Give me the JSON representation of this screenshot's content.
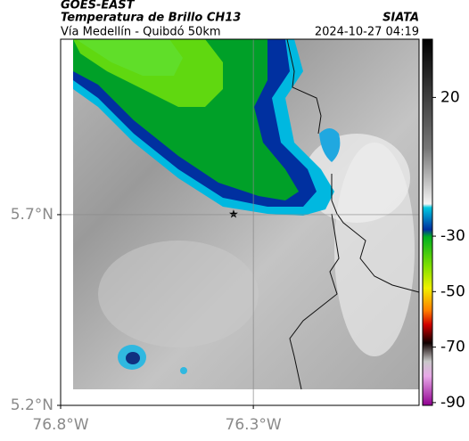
{
  "header": {
    "title": "GOES-EAST",
    "subtitle": "Temperatura de Brillo CH13",
    "route": "Vía Medellín - Quibdó 50km",
    "source": "SIATA",
    "datetime": "2024-10-27 04:19"
  },
  "map": {
    "xlim": [
      -76.8,
      -75.87
    ],
    "ylim": [
      5.2,
      6.16
    ],
    "xticks": [
      {
        "value": -76.8,
        "label": "76.8°W"
      },
      {
        "value": -76.3,
        "label": "76.3°W"
      }
    ],
    "yticks": [
      {
        "value": 5.2,
        "label": "5.2°N"
      },
      {
        "value": 5.7,
        "label": "5.7°N"
      }
    ],
    "grid": true
  },
  "colorbar": {
    "lim": [
      -91,
      41
    ],
    "ticks": [
      20,
      -30,
      -50,
      -70,
      -90
    ]
  }
}
